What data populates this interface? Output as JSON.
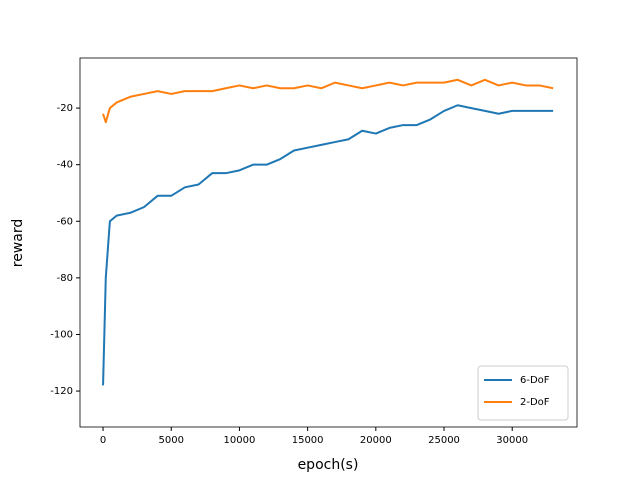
{
  "chart_data": {
    "type": "line",
    "x_label": "epoch(s)",
    "y_label": "reward",
    "x": [
      0,
      200,
      500,
      1000,
      2000,
      3000,
      4000,
      5000,
      6000,
      7000,
      8000,
      9000,
      10000,
      11000,
      12000,
      13000,
      14000,
      15000,
      16000,
      17000,
      18000,
      19000,
      20000,
      21000,
      22000,
      23000,
      24000,
      25000,
      26000,
      27000,
      28000,
      29000,
      30000,
      31000,
      32000,
      33000
    ],
    "series": [
      {
        "name": "6-DoF",
        "color": "#1f77b4",
        "values": [
          -118,
          -80,
          -60,
          -58,
          -57,
          -55,
          -51,
          -51,
          -48,
          -47,
          -43,
          -43,
          -42,
          -40,
          -40,
          -38,
          -35,
          -34,
          -33,
          -32,
          -31,
          -28,
          -29,
          -27,
          -26,
          -26,
          -24,
          -21,
          -19,
          -20,
          -21,
          -22,
          -21,
          -21,
          -21,
          -21
        ]
      },
      {
        "name": "2-DoF",
        "color": "#ff7f0e",
        "values": [
          -22,
          -25,
          -20,
          -18,
          -16,
          -15,
          -14,
          -15,
          -14,
          -14,
          -14,
          -13,
          -12,
          -13,
          -12,
          -13,
          -13,
          -12,
          -13,
          -11,
          -12,
          -13,
          -12,
          -11,
          -12,
          -11,
          -11,
          -11,
          -10,
          -12,
          -10,
          -12,
          -11,
          -12,
          -12,
          -13
        ]
      }
    ],
    "xlim": [
      -1690,
      34750
    ],
    "ylim": [
      -132.7,
      -2.3
    ],
    "xticks": [
      0,
      5000,
      10000,
      15000,
      20000,
      25000,
      30000
    ],
    "yticks": [
      -120,
      -100,
      -80,
      -60,
      -40,
      -20
    ],
    "legend": "lower right",
    "grid": false
  }
}
